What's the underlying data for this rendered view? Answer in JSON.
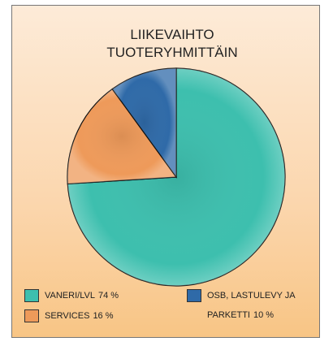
{
  "chart_data": {
    "type": "pie",
    "title_lines": [
      "LIIKEVAIHTO",
      "TUOTERYHMITTÄIN"
    ],
    "categories": [
      "VANERI/LVL",
      "SERVICES",
      "OSB, LASTULEVY JA PARKETTI"
    ],
    "values": [
      74,
      16,
      10
    ],
    "value_labels": [
      "74 %",
      "16 %",
      "10 %"
    ],
    "colors": [
      "#3dbfae",
      "#ee9a5a",
      "#2f6aa8"
    ],
    "start_angle": 0,
    "direction": "clockwise"
  }
}
